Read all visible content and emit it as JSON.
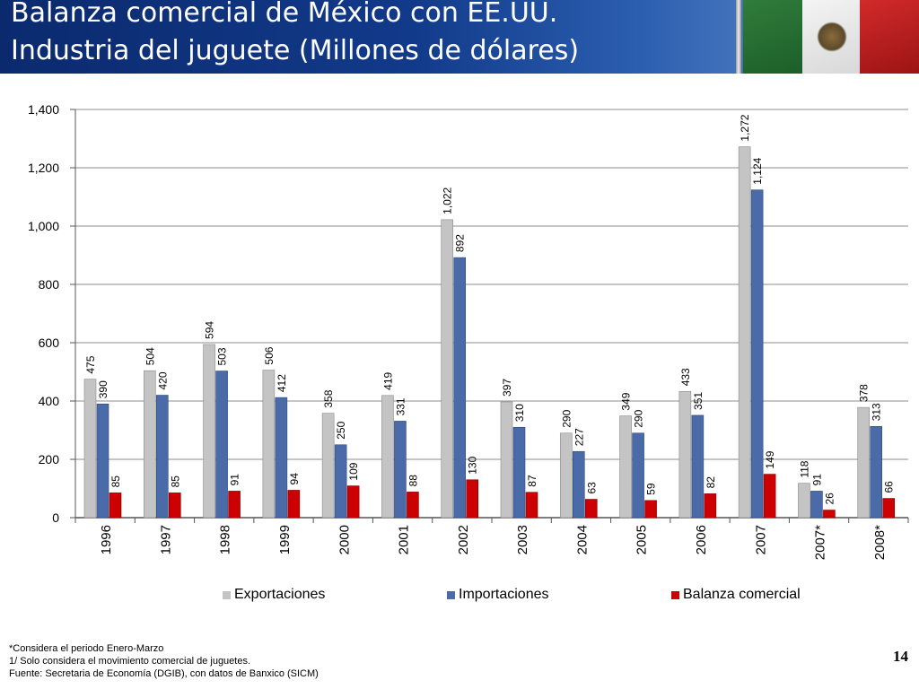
{
  "title_line1": "Balanza comercial de México con EE.UU.",
  "title_line2": "Industria del juguete (Millones de dólares)",
  "page_number": "14",
  "footnotes": [
    "*Considera el periodo Enero-Marzo",
    "1/ Solo considera el movimiento comercial de juguetes.",
    "Fuente: Secretaria de Economía (DGIB), con datos de Banxico (SICM)"
  ],
  "colors": {
    "exportaciones": "#c4c4c4",
    "importaciones": "#4a6aa8",
    "balanza": "#cc0000",
    "header_bg": "#123a8a"
  },
  "chart_data": {
    "type": "bar",
    "categories": [
      "1996",
      "1997",
      "1998",
      "1999",
      "2000",
      "2001",
      "2002",
      "2003",
      "2004",
      "2005",
      "2006",
      "2007",
      "2007*",
      "2008*"
    ],
    "series": [
      {
        "name": "Exportaciones",
        "values": [
          475,
          504,
          594,
          506,
          358,
          419,
          1022,
          397,
          290,
          349,
          433,
          1272,
          118,
          378
        ]
      },
      {
        "name": "Importaciones",
        "values": [
          390,
          420,
          503,
          412,
          250,
          331,
          892,
          310,
          227,
          290,
          351,
          1124,
          91,
          313
        ]
      },
      {
        "name": "Balanza comercial",
        "values": [
          85,
          85,
          91,
          94,
          109,
          88,
          130,
          87,
          63,
          59,
          82,
          149,
          26,
          66
        ]
      }
    ],
    "value_labels": [
      [
        "475",
        "504",
        "594",
        "506",
        "358",
        "419",
        "1,022",
        "397",
        "290",
        "349",
        "433",
        "1,272",
        "118",
        "378"
      ],
      [
        "390",
        "420",
        "503",
        "412",
        "250",
        "331",
        "892",
        "310",
        "227",
        "290",
        "351",
        "1,124",
        "91",
        "313"
      ],
      [
        "85",
        "85",
        "91",
        "94",
        "109",
        "88",
        "130",
        "87",
        "63",
        "59",
        "82",
        "149",
        "26",
        "66"
      ]
    ],
    "y_ticks": [
      0,
      200,
      400,
      600,
      800,
      1000,
      1200,
      1400
    ],
    "y_tick_labels": [
      "0",
      "200",
      "400",
      "600",
      "800",
      "1,000",
      "1,200",
      "1,400"
    ],
    "ylim": [
      0,
      1400
    ],
    "grid": true,
    "legend_position": "bottom",
    "xlabel": "",
    "ylabel": ""
  }
}
